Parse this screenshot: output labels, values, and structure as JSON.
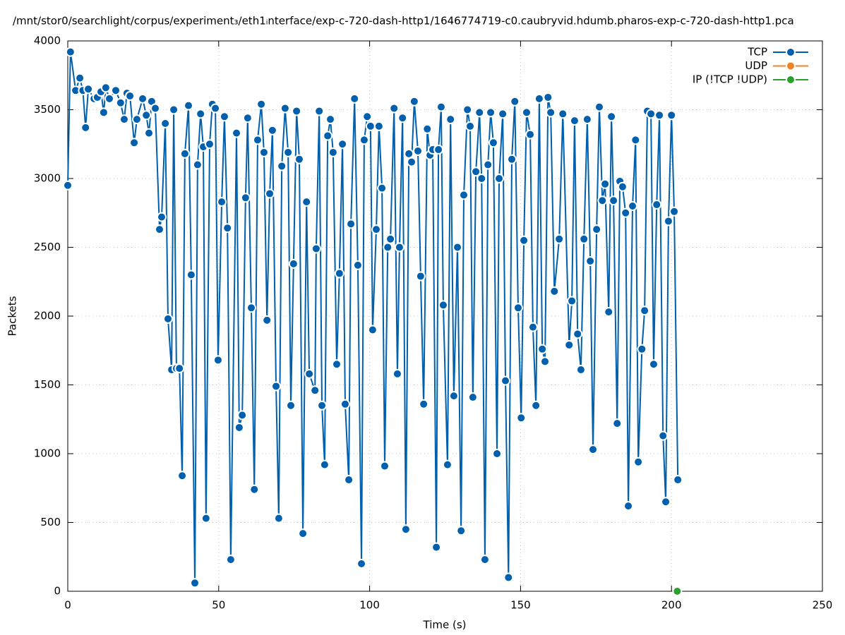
{
  "chart_data": {
    "type": "line",
    "title": "/mnt/stor0/searchlight/corpus/experiment₃/eth1ᵢnterface/exp-c-720-dash-http1/1646774719-c0.caubryvid.hdumb.pharos-exp-c-720-dash-http1.pca",
    "x_label": "Time (s)",
    "y_label": "Packets",
    "xlim": [
      0,
      250
    ],
    "xticks": [
      0,
      50,
      100,
      150,
      200,
      250
    ],
    "ylim": [
      0,
      4000
    ],
    "yticks": [
      0,
      500,
      1000,
      1500,
      2000,
      2500,
      3000,
      3500,
      4000
    ],
    "grid": true,
    "legend": "top-right",
    "series": [
      {
        "name": "TCP",
        "color": "#0060ad",
        "x": [
          0,
          0.9,
          2.6,
          4.0,
          5.0,
          5.9,
          6.8,
          8.7,
          9.8,
          11.0,
          11.9,
          12.6,
          13.8,
          15.9,
          17.5,
          18.7,
          19.6,
          20.6,
          22.0,
          22.9,
          24.8,
          26.0,
          26.9,
          27.8,
          29.0,
          30.4,
          31.1,
          32.3,
          33.2,
          34.4,
          35.1,
          36.0,
          37.0,
          37.9,
          38.8,
          40.0,
          40.9,
          42.1,
          43.0,
          44.0,
          44.9,
          45.8,
          47.0,
          47.9,
          48.9,
          49.8,
          51.0,
          51.9,
          52.9,
          54.0,
          55.9,
          56.8,
          57.8,
          58.9,
          59.6,
          60.8,
          61.8,
          62.9,
          64.1,
          65.0,
          66.0,
          66.9,
          67.8,
          69.0,
          69.9,
          70.9,
          72.0,
          73.0,
          73.9,
          74.8,
          75.8,
          76.7,
          77.9,
          79.1,
          80.0,
          81.9,
          82.3,
          83.3,
          84.2,
          85.1,
          86.1,
          87.0,
          87.9,
          89.1,
          90.0,
          91.0,
          91.9,
          93.1,
          93.8,
          95.0,
          96.1,
          97.3,
          98.2,
          99.2,
          100.3,
          101.0,
          102.2,
          103.1,
          104.1,
          105.0,
          106.0,
          106.9,
          108.1,
          109.2,
          109.9,
          110.9,
          112.0,
          113.0,
          113.9,
          114.8,
          116.0,
          116.9,
          117.9,
          119.1,
          120.0,
          120.9,
          122.1,
          122.8,
          123.7,
          124.4,
          125.8,
          126.8,
          127.9,
          129.1,
          130.3,
          131.2,
          132.4,
          133.3,
          134.2,
          135.2,
          136.4,
          137.1,
          138.2,
          139.2,
          140.1,
          141.0,
          142.2,
          142.9,
          144.1,
          145.0,
          146.0,
          147.1,
          148.1,
          149.2,
          150.2,
          151.1,
          152.0,
          153.2,
          154.1,
          155.1,
          156.2,
          157.2,
          158.1,
          159.1,
          160.0,
          161.2,
          162.8,
          164.0,
          166.1,
          167.0,
          167.9,
          168.9,
          170.0,
          171.0,
          172.1,
          173.1,
          174.0,
          175.2,
          176.1,
          177.1,
          178.0,
          179.2,
          180.1,
          180.8,
          182.0,
          182.9,
          183.8,
          184.8,
          185.7,
          187.1,
          188.1,
          189.0,
          190.2,
          191.1,
          192.0,
          193.2,
          194.1,
          195.1,
          196.0,
          197.2,
          198.1,
          199.0,
          200.0,
          200.9,
          202.1
        ],
        "values": [
          2950,
          3920,
          3640,
          3730,
          3640,
          3370,
          3650,
          3580,
          3590,
          3630,
          3480,
          3660,
          3580,
          3640,
          3550,
          3430,
          3620,
          3600,
          3260,
          3430,
          3580,
          3460,
          3330,
          3560,
          3510,
          2630,
          2720,
          3400,
          1980,
          1610,
          3500,
          1620,
          1620,
          840,
          3180,
          3530,
          2300,
          60,
          3100,
          3470,
          3230,
          530,
          3250,
          3540,
          3510,
          1680,
          2830,
          3450,
          2640,
          230,
          3330,
          1190,
          1280,
          2860,
          3440,
          2060,
          740,
          3280,
          3540,
          3190,
          1970,
          2890,
          3350,
          1490,
          530,
          3090,
          3510,
          3190,
          1350,
          2380,
          3490,
          3140,
          420,
          2830,
          1580,
          1460,
          2490,
          3490,
          1350,
          920,
          3310,
          3430,
          3190,
          1650,
          2310,
          3250,
          1360,
          810,
          2670,
          3580,
          2370,
          200,
          3280,
          3450,
          3380,
          1900,
          2630,
          3380,
          2930,
          910,
          2500,
          2560,
          3510,
          1580,
          2500,
          3440,
          450,
          3180,
          3120,
          3560,
          3200,
          2290,
          1360,
          3360,
          3170,
          3210,
          320,
          3210,
          3520,
          2080,
          920,
          3430,
          1420,
          2500,
          440,
          2880,
          3500,
          3380,
          1410,
          3050,
          3480,
          3000,
          230,
          3100,
          3480,
          3260,
          1000,
          3000,
          3470,
          1530,
          100,
          3140,
          3560,
          2060,
          1260,
          2550,
          3480,
          3320,
          1920,
          1350,
          3580,
          1760,
          1670,
          3590,
          3480,
          2180,
          2560,
          3470,
          1790,
          2110,
          3420,
          1870,
          1610,
          2560,
          3430,
          2400,
          1030,
          2630,
          3520,
          2840,
          2960,
          2030,
          3450,
          2840,
          1220,
          2980,
          2940,
          2750,
          620,
          2800,
          3280,
          940,
          1760,
          2040,
          3490,
          3470,
          1650,
          2810,
          3460,
          1130,
          650,
          2690,
          3460,
          2760,
          810
        ]
      },
      {
        "name": "UDP",
        "color": "#f5821f",
        "x": [],
        "values": []
      },
      {
        "name": "IP (!TCP  !UDP)",
        "color": "#2ca02c",
        "x": [
          201.9
        ],
        "values": [
          0
        ]
      }
    ]
  }
}
